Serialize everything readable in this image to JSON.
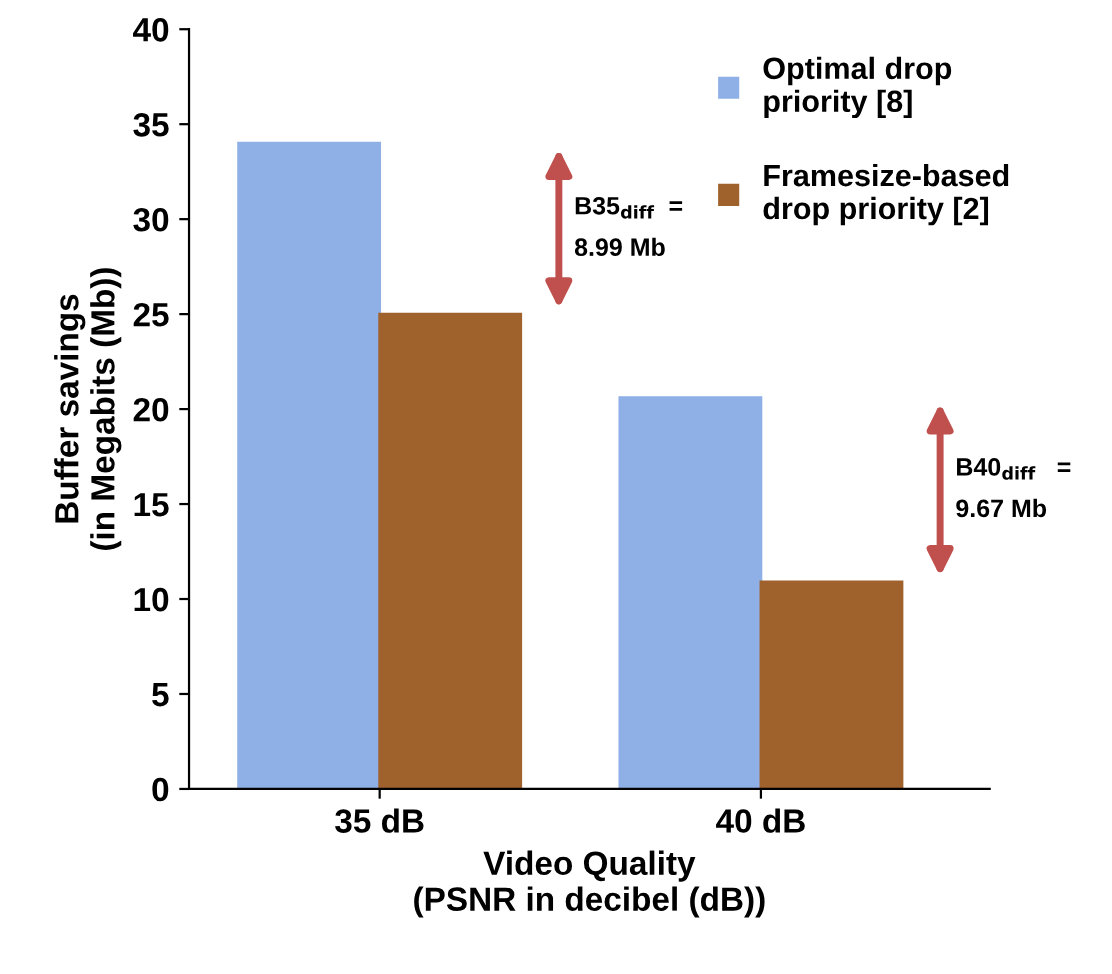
{
  "chart_data": {
    "type": "bar",
    "xlabel": "Video Quality\n(PSNR in decibel (dB))",
    "ylabel": "Buffer savings\n(in Megabits (Mb))",
    "categories": [
      "35 dB",
      "40 dB"
    ],
    "series": [
      {
        "name": "Optimal drop\npriority [8]",
        "color": "#8fb0e6",
        "values": [
          34,
          20.6
        ]
      },
      {
        "name": "Framesize-based\ndrop priority [2]",
        "color": "#a0622d",
        "values": [
          25,
          10.9
        ]
      }
    ],
    "ylim": [
      0,
      40
    ],
    "yticks": [
      0,
      5,
      10,
      15,
      20,
      25,
      30,
      35,
      40
    ],
    "grid": false,
    "legend": "top right",
    "annotations": [
      "B35$_{diff}$  =\n8.99 Mb",
      "B40$_{diff}$   =\n9.67 Mb"
    ]
  }
}
